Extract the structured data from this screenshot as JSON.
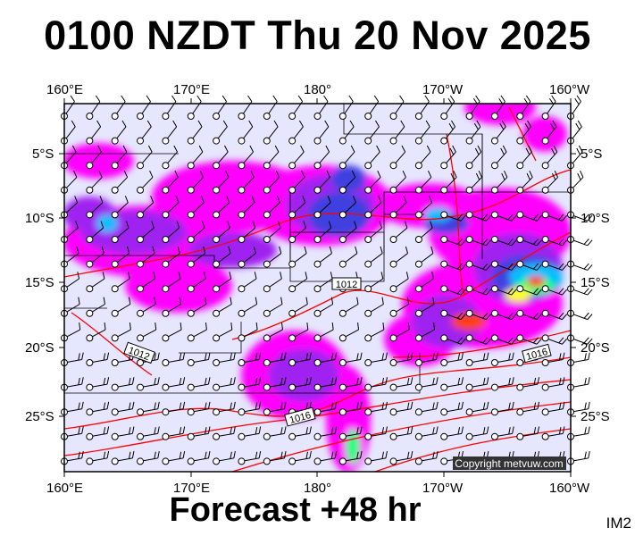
{
  "title": "0100 NZDT Thu 20 Nov 2025",
  "forecast": "Forecast +48 hr",
  "image_id_label": "IM2",
  "copyright": "Copyright metvuw.com",
  "lon_labels": [
    "160°E",
    "170°E",
    "180°",
    "170°W",
    "160°W"
  ],
  "lat_labels": [
    "5°S",
    "10°S",
    "15°S",
    "20°S",
    "25°S"
  ],
  "isobar_labels": [
    "1012",
    "1012",
    "1016",
    "1016"
  ],
  "colors": {
    "background": "#e6e6ff",
    "isobar": "#ff0000",
    "precip": [
      "#ff00ff",
      "#a020f0",
      "#4040e0",
      "#00c0ff",
      "#00ff80",
      "#ffff00",
      "#ff4000"
    ]
  }
}
